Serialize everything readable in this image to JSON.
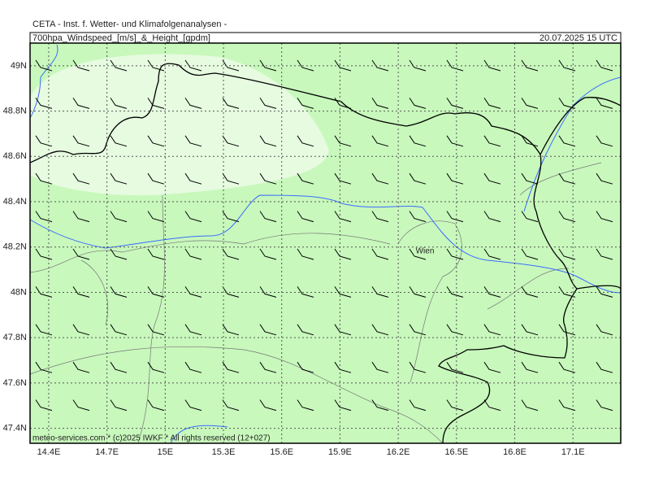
{
  "header": {
    "institute": "CETA - Inst. f. Wetter- und Klimafolgenanalysen -",
    "title": "700hpa_Windspeed_[m/s]_&_Height_[gpdm]",
    "valid_time": "20.07.2025 15 UTC"
  },
  "map": {
    "lonlim": [
      14.304,
      17.346
    ],
    "latlim": [
      47.334,
      49.1
    ],
    "lat_ticks": [
      {
        "value": 49,
        "label": "49N"
      },
      {
        "value": 48.8,
        "label": "48.8N"
      },
      {
        "value": 48.6,
        "label": "48.6N"
      },
      {
        "value": 48.4,
        "label": "48.4N"
      },
      {
        "value": 48.2,
        "label": "48.2N"
      },
      {
        "value": 48,
        "label": "48N"
      },
      {
        "value": 47.8,
        "label": "47.8N"
      },
      {
        "value": 47.6,
        "label": "47.6N"
      },
      {
        "value": 47.4,
        "label": "47.4N"
      }
    ],
    "lon_ticks": [
      {
        "value": 14.4,
        "label": "14.4E"
      },
      {
        "value": 14.7,
        "label": "14.7E"
      },
      {
        "value": 15,
        "label": "15E"
      },
      {
        "value": 15.3,
        "label": "15.3E"
      },
      {
        "value": 15.6,
        "label": "15.6E"
      },
      {
        "value": 15.9,
        "label": "15.9E"
      },
      {
        "value": 16.2,
        "label": "16.2E"
      },
      {
        "value": 16.5,
        "label": "16.5E"
      },
      {
        "value": 16.8,
        "label": "16.8E"
      },
      {
        "value": 17.1,
        "label": "17.1E"
      }
    ],
    "places": [
      {
        "label": "Wien"
      }
    ]
  },
  "footer": {
    "credit": "meteo-services.com * (c)2025 IWKF * All rights reserved (12+027)"
  }
}
